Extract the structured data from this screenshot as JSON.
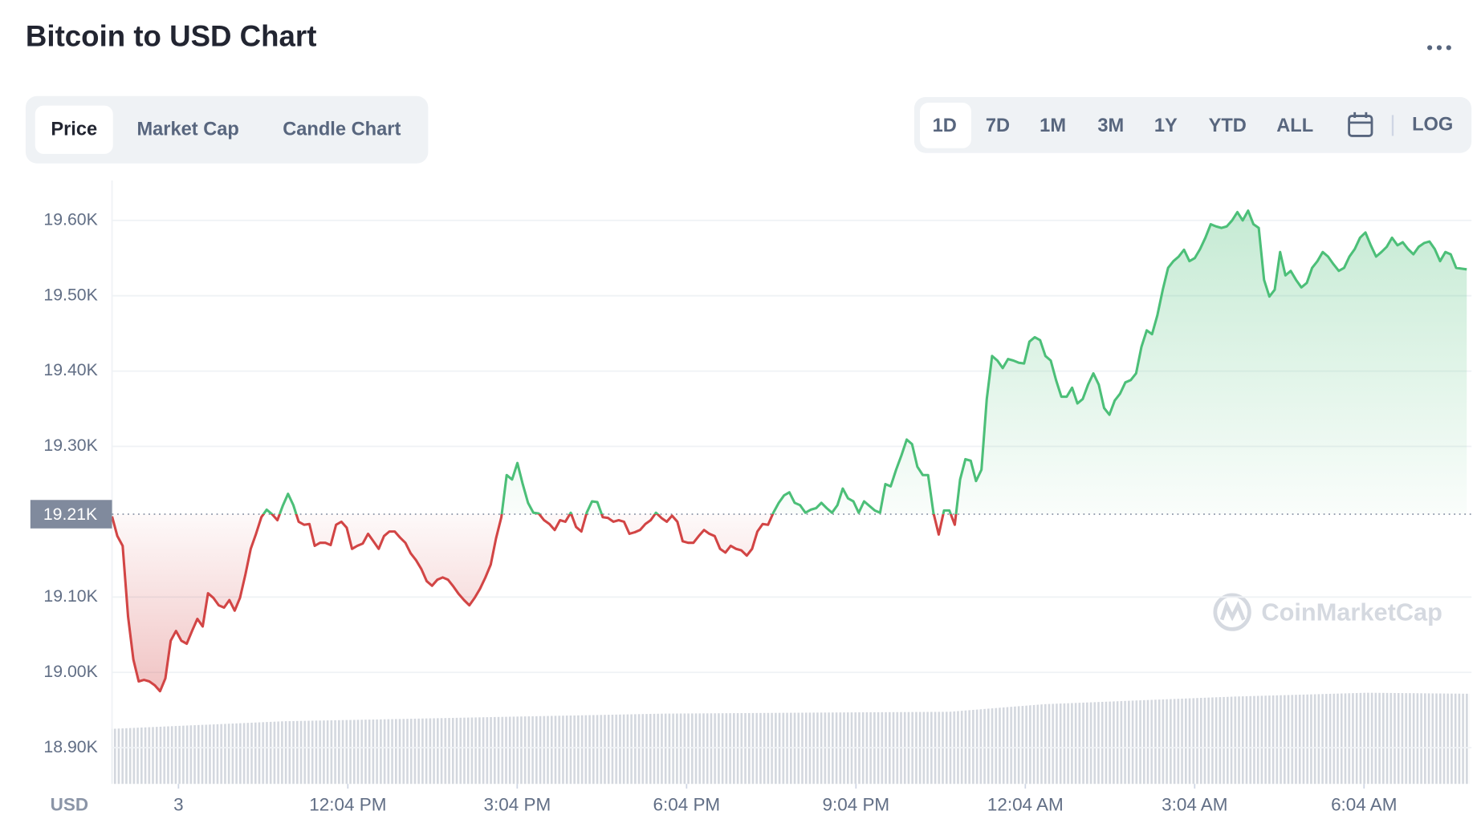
{
  "header": {
    "title": "Bitcoin to USD Chart"
  },
  "tabs": [
    "Price",
    "Market Cap",
    "Candle Chart"
  ],
  "ranges": [
    "1D",
    "7D",
    "1M",
    "3M",
    "1Y",
    "YTD",
    "ALL"
  ],
  "log_button": "LOG",
  "watermark": "CoinMarketCap",
  "chart_data": {
    "type": "line",
    "y_label": "USD",
    "x_labels": [
      "3",
      "12:04 PM",
      "3:04 PM",
      "6:04 PM",
      "9:04 PM",
      "12:04 AM",
      "3:04 AM",
      "6:04 AM"
    ],
    "values": [
      19207,
      19181,
      19168,
      19074,
      19017,
      18988,
      18990,
      18988,
      18983,
      18975,
      18992,
      19042,
      19055,
      19042,
      19038,
      19055,
      19071,
      19061,
      19105,
      19099,
      19089,
      19086,
      19096,
      19082,
      19099,
      19130,
      19164,
      19184,
      19206,
      19216,
      19210,
      19202,
      19221,
      19237,
      19222,
      19200,
      19196,
      19197,
      19168,
      19172,
      19172,
      19169,
      19196,
      19200,
      19192,
      19164,
      19168,
      19171,
      19184,
      19174,
      19164,
      19181,
      19187,
      19187,
      19179,
      19172,
      19158,
      19149,
      19137,
      19121,
      19115,
      19123,
      19126,
      19123,
      19114,
      19104,
      19096,
      19089,
      19099,
      19111,
      19126,
      19143,
      19178,
      19206,
      19262,
      19256,
      19278,
      19250,
      19225,
      19212,
      19211,
      19202,
      19197,
      19189,
      19202,
      19200,
      19212,
      19193,
      19187,
      19212,
      19227,
      19226,
      19206,
      19205,
      19200,
      19202,
      19200,
      19184,
      19186,
      19189,
      19197,
      19202,
      19212,
      19205,
      19200,
      19208,
      19200,
      19174,
      19172,
      19172,
      19181,
      19189,
      19184,
      19181,
      19164,
      19159,
      19168,
      19164,
      19162,
      19155,
      19164,
      19187,
      19197,
      19196,
      19212,
      19225,
      19235,
      19239,
      19225,
      19222,
      19212,
      19216,
      19218,
      19225,
      19218,
      19212,
      19222,
      19244,
      19231,
      19227,
      19212,
      19227,
      19221,
      19215,
      19212,
      19250,
      19247,
      19269,
      19288,
      19309,
      19303,
      19273,
      19262,
      19262,
      19212,
      19183,
      19215,
      19215,
      19196,
      19256,
      19283,
      19281,
      19254,
      19269,
      19363,
      19420,
      19414,
      19404,
      19416,
      19414,
      19411,
      19410,
      19439,
      19445,
      19441,
      19420,
      19414,
      19388,
      19366,
      19366,
      19378,
      19357,
      19363,
      19382,
      19397,
      19382,
      19351,
      19342,
      19361,
      19370,
      19385,
      19388,
      19397,
      19432,
      19454,
      19449,
      19474,
      19508,
      19537,
      19546,
      19552,
      19561,
      19546,
      19550,
      19562,
      19577,
      19595,
      19592,
      19590,
      19592,
      19600,
      19611,
      19600,
      19613,
      19595,
      19590,
      19521,
      19499,
      19508,
      19558,
      19527,
      19533,
      19521,
      19511,
      19517,
      19537,
      19546,
      19558,
      19552,
      19542,
      19533,
      19537,
      19552,
      19562,
      19577,
      19584,
      19567,
      19552,
      19558,
      19565,
      19577,
      19567,
      19571,
      19562,
      19555,
      19565,
      19570,
      19572,
      19562,
      19546,
      19558,
      19555,
      19537,
      19536,
      19535
    ],
    "color_up": "#4cbf78",
    "color_down": "#d24545",
    "reference": {
      "value": 19210,
      "label": "19.21K"
    },
    "ylim": [
      18852,
      19653
    ],
    "yticks": [
      {
        "value": 18900,
        "label": "18.90K"
      },
      {
        "value": 19000,
        "label": "19.00K"
      },
      {
        "value": 19100,
        "label": "19.10K"
      },
      {
        "value": 19300,
        "label": "19.30K"
      },
      {
        "value": 19400,
        "label": "19.40K"
      },
      {
        "value": 19500,
        "label": "19.50K"
      },
      {
        "value": 19600,
        "label": "19.60K"
      }
    ],
    "grid": true
  }
}
